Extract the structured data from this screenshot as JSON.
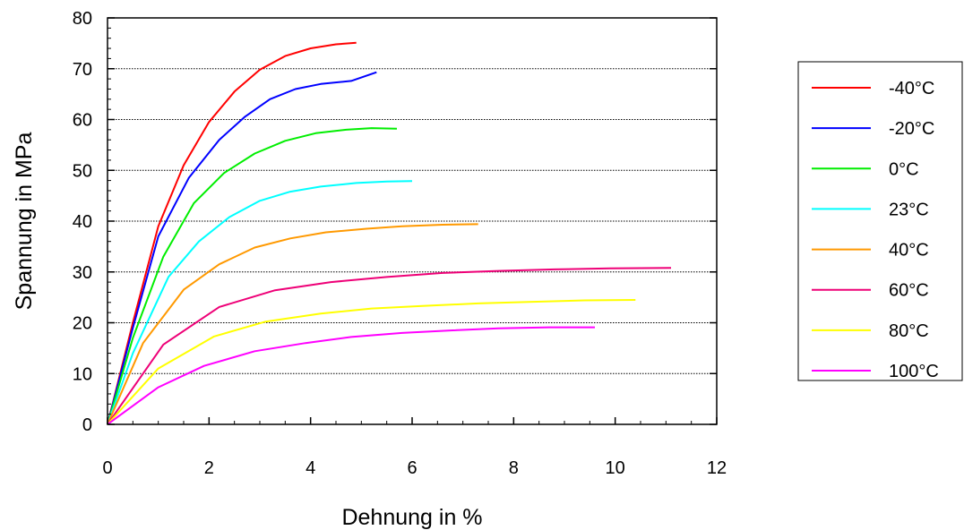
{
  "chart_data": {
    "type": "line",
    "xlabel": "Dehnung in %",
    "ylabel": "Spannung in MPa",
    "xlim": [
      0,
      12
    ],
    "ylim": [
      0,
      80
    ],
    "x_ticks": [
      0,
      2,
      4,
      6,
      8,
      10,
      12
    ],
    "y_ticks": [
      0,
      10,
      20,
      30,
      40,
      50,
      60,
      70,
      80
    ],
    "y_gridlines": [
      10,
      20,
      30,
      40,
      50,
      60,
      70
    ],
    "grid_style": "dotted horizontal",
    "legend_position": "right",
    "series": [
      {
        "name": "-40°C",
        "color": "#ff0000",
        "points": [
          [
            0,
            0
          ],
          [
            0.5,
            20
          ],
          [
            1.0,
            39
          ],
          [
            1.5,
            51
          ],
          [
            2.0,
            59.5
          ],
          [
            2.5,
            65.5
          ],
          [
            3.0,
            69.8
          ],
          [
            3.5,
            72.5
          ],
          [
            4.0,
            74
          ],
          [
            4.5,
            74.8
          ],
          [
            4.9,
            75.1
          ]
        ]
      },
      {
        "name": "-20°C",
        "color": "#0000ff",
        "points": [
          [
            0,
            0
          ],
          [
            0.5,
            19
          ],
          [
            1.0,
            37
          ],
          [
            1.6,
            48.5
          ],
          [
            2.2,
            56
          ],
          [
            2.7,
            60.5
          ],
          [
            3.2,
            64
          ],
          [
            3.7,
            66
          ],
          [
            4.2,
            67
          ],
          [
            4.8,
            67.6
          ],
          [
            5.3,
            69.3
          ]
        ]
      },
      {
        "name": "0°C",
        "color": "#00ee00",
        "points": [
          [
            0,
            0
          ],
          [
            0.5,
            17
          ],
          [
            1.1,
            33
          ],
          [
            1.7,
            43.5
          ],
          [
            2.3,
            49.5
          ],
          [
            2.9,
            53.3
          ],
          [
            3.5,
            55.8
          ],
          [
            4.1,
            57.3
          ],
          [
            4.7,
            58
          ],
          [
            5.2,
            58.3
          ],
          [
            5.7,
            58.2
          ]
        ]
      },
      {
        "name": "23°C",
        "color": "#00ffff",
        "points": [
          [
            0,
            0
          ],
          [
            0.5,
            14
          ],
          [
            1.2,
            29
          ],
          [
            1.8,
            36
          ],
          [
            2.4,
            40.8
          ],
          [
            3.0,
            44
          ],
          [
            3.6,
            45.8
          ],
          [
            4.2,
            46.8
          ],
          [
            4.9,
            47.5
          ],
          [
            5.5,
            47.8
          ],
          [
            6.0,
            47.9
          ]
        ]
      },
      {
        "name": "40°C",
        "color": "#ff9900",
        "points": [
          [
            0,
            0
          ],
          [
            0.7,
            16
          ],
          [
            1.5,
            26.5
          ],
          [
            2.2,
            31.5
          ],
          [
            2.9,
            34.8
          ],
          [
            3.6,
            36.6
          ],
          [
            4.3,
            37.8
          ],
          [
            5.1,
            38.5
          ],
          [
            5.8,
            39
          ],
          [
            6.6,
            39.3
          ],
          [
            7.3,
            39.4
          ]
        ]
      },
      {
        "name": "60°C",
        "color": "#ee0077",
        "points": [
          [
            0,
            0
          ],
          [
            1.1,
            15.7
          ],
          [
            2.2,
            23.1
          ],
          [
            3.3,
            26.4
          ],
          [
            4.4,
            28
          ],
          [
            5.5,
            29
          ],
          [
            6.6,
            29.8
          ],
          [
            7.7,
            30.2
          ],
          [
            8.8,
            30.5
          ],
          [
            9.9,
            30.7
          ],
          [
            11.1,
            30.8
          ]
        ]
      },
      {
        "name": "80°C",
        "color": "#ffff00",
        "points": [
          [
            0,
            0
          ],
          [
            1.0,
            11
          ],
          [
            2.1,
            17.3
          ],
          [
            3.1,
            20.2
          ],
          [
            4.2,
            21.8
          ],
          [
            5.2,
            22.8
          ],
          [
            6.2,
            23.3
          ],
          [
            7.3,
            23.8
          ],
          [
            8.3,
            24.1
          ],
          [
            9.4,
            24.4
          ],
          [
            10.4,
            24.5
          ]
        ]
      },
      {
        "name": "100°C",
        "color": "#ff00ff",
        "points": [
          [
            0,
            0
          ],
          [
            1.0,
            7.3
          ],
          [
            1.9,
            11.5
          ],
          [
            2.9,
            14.4
          ],
          [
            3.9,
            16
          ],
          [
            4.8,
            17.2
          ],
          [
            5.8,
            18
          ],
          [
            6.8,
            18.5
          ],
          [
            7.7,
            18.9
          ],
          [
            8.7,
            19.1
          ],
          [
            9.6,
            19.1
          ]
        ]
      }
    ]
  }
}
